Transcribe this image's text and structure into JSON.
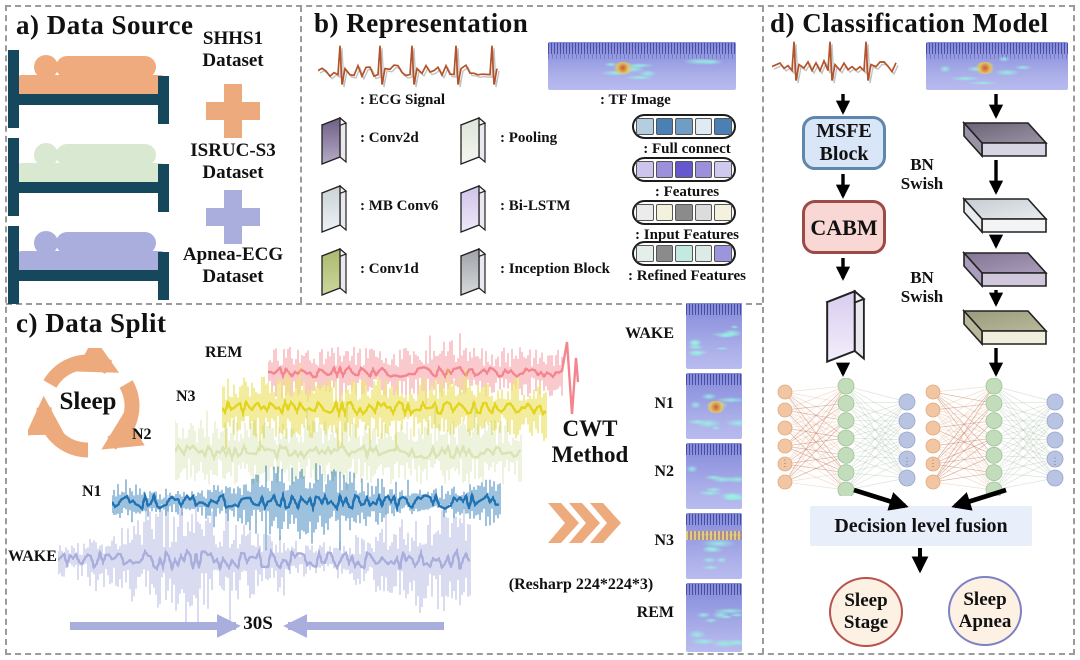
{
  "colors": {
    "teal": "#15485c",
    "orange": "#edaa7d",
    "lavender": "#a9aedd",
    "msfe_fill": "#d9e6f7",
    "msfe_border": "#5f86ad",
    "cabm_fill": "#f8d7d4",
    "cabm_border": "#9d4b47",
    "fusion_fill": "#e9eefb",
    "circle_fill": "#fcf1e3",
    "stage_border": "#b8524e",
    "apnea_border": "#7d81c6",
    "trace_wake": "#a9aedd",
    "trace_n1": "#2173b4",
    "trace_n2": "#d9e3b4",
    "trace_n3": "#e3d41e",
    "trace_rem": "#f4858e",
    "ecg_line": "#b4532a",
    "bed_colors": [
      "#efab7e",
      "#d9e8d0",
      "#a9aedd"
    ],
    "strip_cells": [
      [
        "#b3cede",
        "#4b80b4",
        "#6f9dc6",
        "#dfeaf2",
        "#4b80b4"
      ],
      [
        "#cdc5ec",
        "#9d90da",
        "#6657cf",
        "#9d90da",
        "#cfc9f0"
      ],
      [
        "#ececec",
        "#f4f2dd",
        "#8b8b8b",
        "#dcdcdc",
        "#f4f2de"
      ],
      [
        "#e4efe9",
        "#8b8b8b",
        "#c3e9e0",
        "#dcebe5",
        "#9b95de"
      ]
    ],
    "nn_input": "#f2c6a2",
    "nn_hidden": "#c3ddbc",
    "nn_output": "#b9c4e2"
  },
  "panel_a": {
    "title": "a) Data Source",
    "datasets": [
      {
        "line1": "SHHS1",
        "line2": "Dataset"
      },
      {
        "line1": "ISRUC-S3",
        "line2": "Dataset"
      },
      {
        "line1": "Apnea-ECG",
        "line2": "Dataset"
      }
    ]
  },
  "panel_b": {
    "title": "b) Representation",
    "ecg_label": ": ECG Signal",
    "tf_label": ": TF  Image",
    "legend": [
      ": Conv2d",
      ": MB Conv6",
      ": Conv1d",
      ": Pooling",
      ": Bi-LSTM",
      ": Inception Block"
    ],
    "strips": [
      ": Full connect",
      ": Features",
      ": Input Features",
      ": Refined Features"
    ]
  },
  "panel_c": {
    "title": "c) Data Split",
    "cycle_label": "Sleep",
    "trace_labels": [
      "WAKE",
      "N1",
      "N2",
      "N3",
      "REM"
    ],
    "cwt_line1": "CWT",
    "cwt_line2": "Method",
    "resharp": "(Resharp 224*224*3)",
    "duration": "30S",
    "spec_labels": [
      "WAKE",
      "N1",
      "N2",
      "N3",
      "REM"
    ]
  },
  "panel_d": {
    "title": "d) Classification Model",
    "msfe_line1": "MSFE",
    "msfe_line2": "Block",
    "cabm": "CABM",
    "bn": "BN",
    "swish": "Swish",
    "fusion": "Decision level fusion",
    "out_stage_line1": "Sleep",
    "out_stage_line2": "Stage",
    "out_apnea_line1": "Sleep",
    "out_apnea_line2": "Apnea"
  }
}
